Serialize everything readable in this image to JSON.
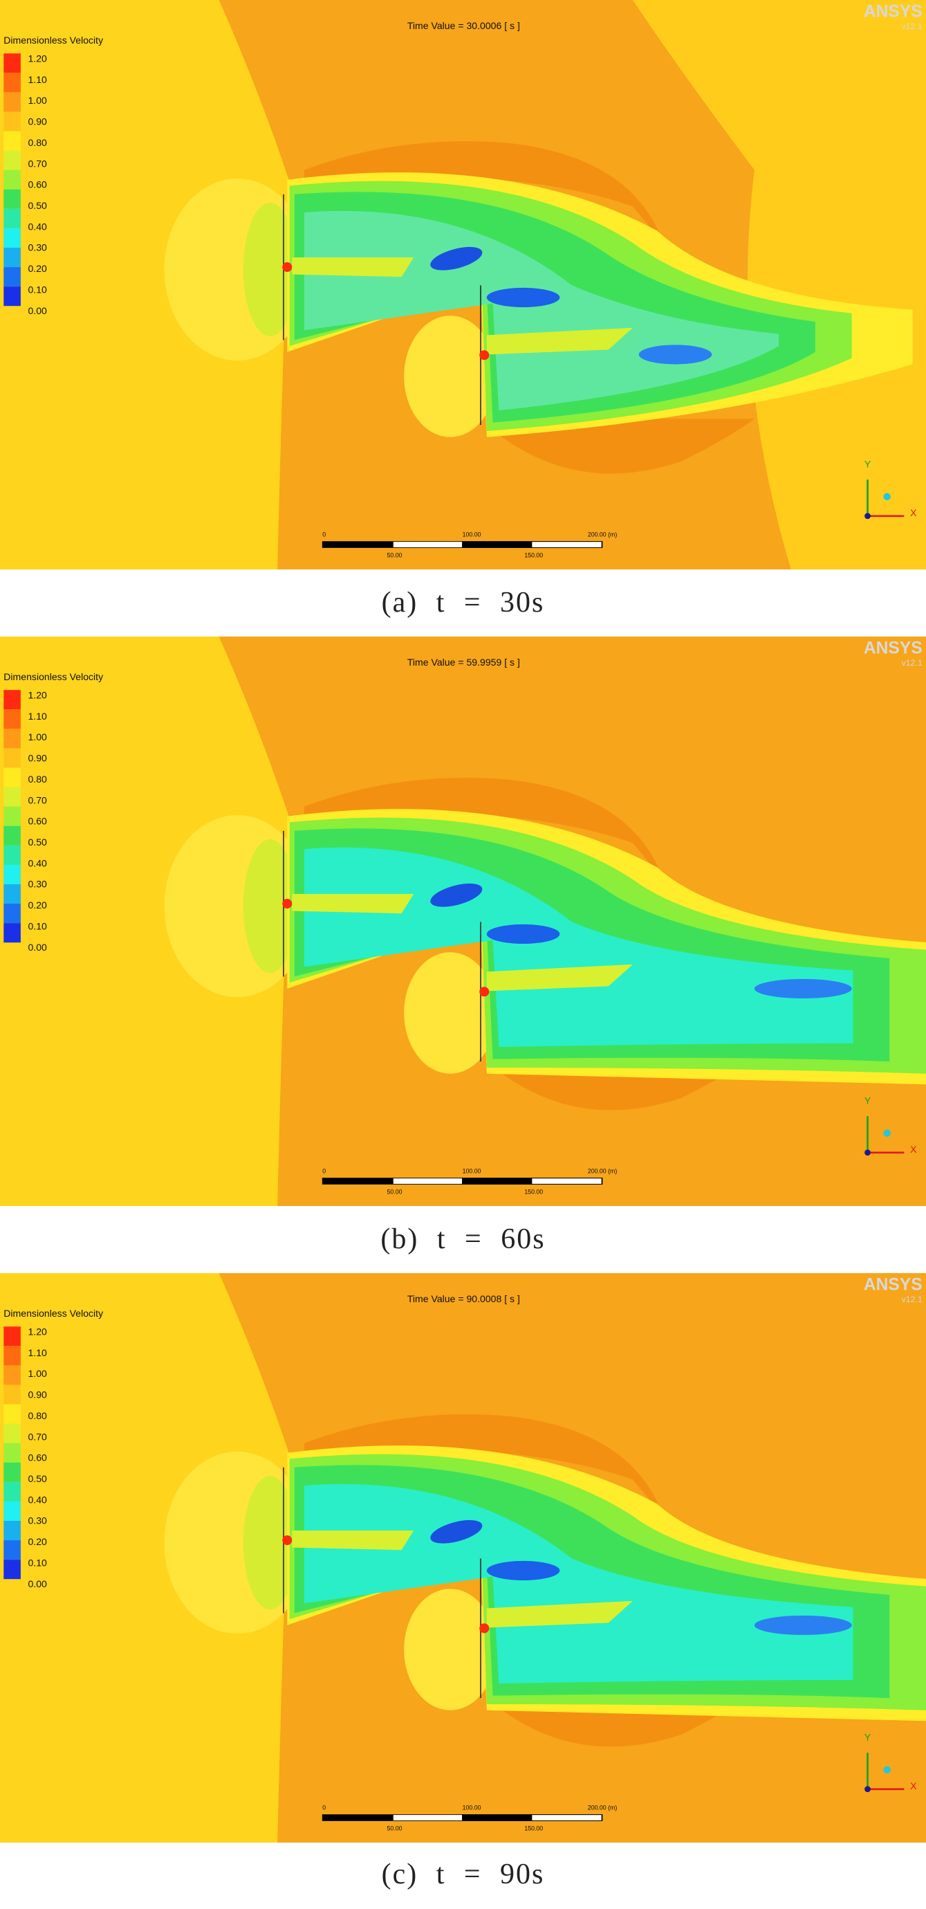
{
  "legend": {
    "title": "Dimensionless Velocity",
    "ticks": [
      "1.20",
      "1.10",
      "1.00",
      "0.90",
      "0.80",
      "0.70",
      "0.60",
      "0.50",
      "0.40",
      "0.30",
      "0.20",
      "0.10",
      "0.00"
    ]
  },
  "logo": {
    "name": "ANSYS",
    "version": "v12.1"
  },
  "scale_bar": {
    "top_labels": [
      "0",
      "100.00",
      "200.00 (m)"
    ],
    "bottom_labels": [
      "50.00",
      "150.00"
    ]
  },
  "axes": {
    "y": "Y",
    "x": "X"
  },
  "panels": [
    {
      "time_label": "Time Value = 30.0006 [ s ]",
      "caption": "(a) t = 30s"
    },
    {
      "time_label": "Time Value = 59.9959 [ s ]",
      "caption": "(b) t = 60s"
    },
    {
      "time_label": "Time Value = 90.0008 [ s ]",
      "caption": "(c) t = 90s"
    }
  ]
}
